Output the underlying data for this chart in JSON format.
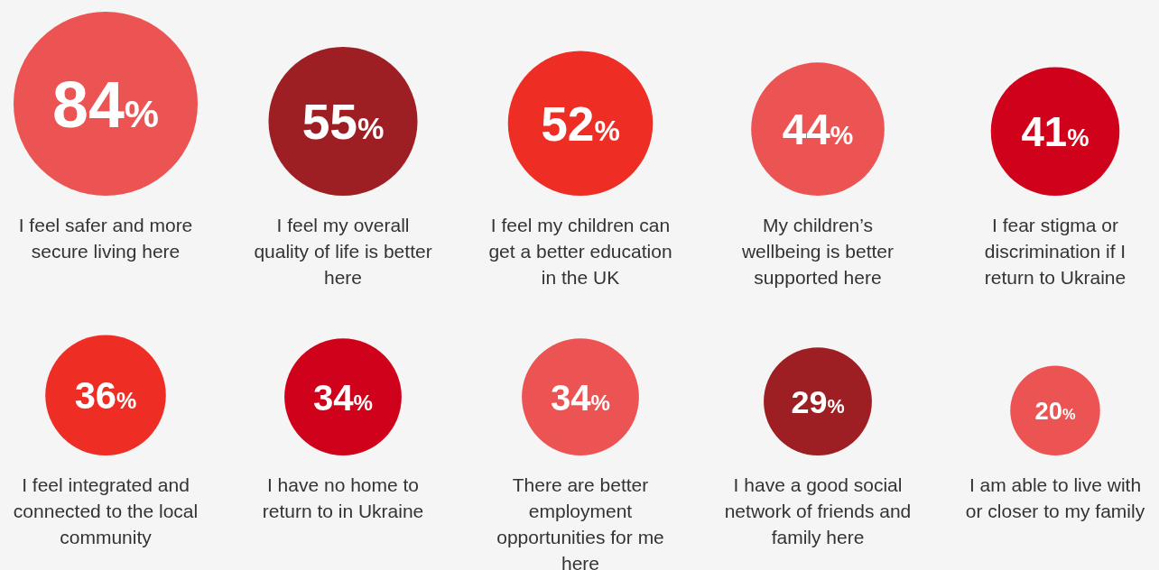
{
  "chart_data": {
    "type": "other",
    "categories": [
      "I feel safer and more secure living here",
      "I feel my overall quality of life is better here",
      "I feel my children can get a better education in the UK",
      "My children’s wellbeing is better supported here",
      "I fear stigma or discrimination if I return to Ukraine",
      "I feel integrated and connected to the local community",
      "I have no home to return to in Ukraine",
      "There are better employment opportunities for me here",
      "I have a good social network of friends and family here",
      "I am able to live with or closer to my family"
    ],
    "values": [
      84,
      55,
      52,
      44,
      41,
      36,
      34,
      34,
      29,
      20
    ],
    "value_labels": [
      "84%",
      "55%",
      "52%",
      "44%",
      "41%",
      "36%",
      "34%",
      "34%",
      "29%",
      "20%"
    ],
    "colors": [
      "#ec5454",
      "#9e1f23",
      "#ee2d24",
      "#ec5454",
      "#d0021b",
      "#ee2d24",
      "#d0021b",
      "#ec5454",
      "#9e1f23",
      "#ec5454"
    ]
  }
}
